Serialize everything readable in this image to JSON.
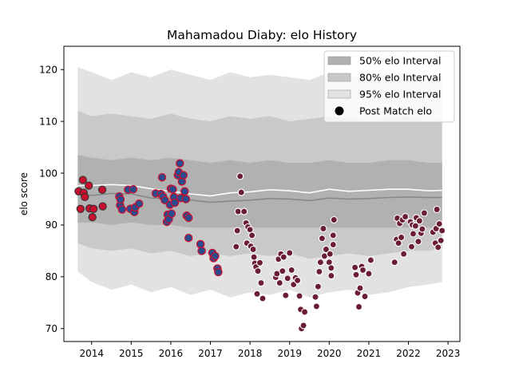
{
  "chart_data": {
    "type": "scatter",
    "title": "Mahamadou Diaby: elo History",
    "xlabel": "",
    "ylabel": "elo score",
    "xlim": [
      2013.3,
      2023.3
    ],
    "ylim": [
      67.5,
      124.5
    ],
    "x_ticks": [
      2014,
      2015,
      2016,
      2017,
      2018,
      2019,
      2020,
      2021,
      2022,
      2023
    ],
    "y_ticks": [
      70,
      80,
      90,
      100,
      110,
      120
    ],
    "grid": false,
    "legend_position": "top-right",
    "legend": [
      {
        "label": "50% elo Interval",
        "kind": "patch",
        "color": "#b0b0b0"
      },
      {
        "label": "80% elo Interval",
        "kind": "patch",
        "color": "#c8c8c8"
      },
      {
        "label": "95% elo Interval",
        "kind": "patch",
        "color": "#e2e2e2"
      },
      {
        "label": "Post Match elo",
        "kind": "marker",
        "color": "#000000"
      }
    ],
    "colors": {
      "band95": "#e2e2e2",
      "band80": "#c9c9c9",
      "band50": "#b1b1b1",
      "median_line": "#888888",
      "mean_line": "#ffffff",
      "era1_fill": "#c8102e",
      "era1_edge": "#333333",
      "era2_fill": "#2a4c8f",
      "era2_edge": "#c8102e",
      "era3_fill": "#6b1e33",
      "era3_edge": "#ffffff"
    },
    "bands": {
      "x": [
        2013.65,
        2014.0,
        2014.5,
        2015.0,
        2015.5,
        2016.0,
        2016.5,
        2017.0,
        2017.5,
        2018.0,
        2018.5,
        2019.0,
        2019.5,
        2020.0,
        2020.5,
        2021.0,
        2021.5,
        2022.0,
        2022.5,
        2022.85
      ],
      "upper95": [
        120.5,
        119.5,
        118.0,
        119.5,
        118.5,
        120.0,
        119.0,
        118.0,
        119.5,
        118.5,
        119.0,
        118.5,
        118.0,
        119.5,
        119.0,
        118.0,
        119.0,
        119.5,
        118.0,
        118.5
      ],
      "lower95": [
        81.0,
        79.0,
        77.5,
        78.5,
        77.0,
        78.0,
        76.5,
        77.5,
        76.0,
        77.0,
        76.5,
        77.5,
        76.0,
        77.0,
        77.5,
        76.5,
        77.0,
        78.0,
        78.5,
        79.0
      ],
      "upper80": [
        112.0,
        111.0,
        111.5,
        111.0,
        110.5,
        111.5,
        110.5,
        110.0,
        111.0,
        110.5,
        111.0,
        110.0,
        110.5,
        111.0,
        110.5,
        110.0,
        110.5,
        111.0,
        110.0,
        110.5
      ],
      "lower80": [
        86.5,
        85.5,
        85.0,
        85.5,
        84.5,
        85.0,
        84.0,
        84.5,
        84.0,
        84.5,
        84.0,
        84.5,
        83.5,
        84.0,
        84.5,
        84.0,
        84.5,
        85.0,
        85.0,
        85.5
      ],
      "upper50": [
        103.5,
        103.0,
        102.5,
        103.0,
        102.5,
        103.0,
        102.5,
        102.0,
        102.5,
        102.0,
        102.5,
        102.0,
        102.0,
        102.5,
        102.0,
        102.0,
        102.5,
        102.5,
        102.0,
        102.0
      ],
      "lower50": [
        90.5,
        90.5,
        90.0,
        90.5,
        90.0,
        90.0,
        89.5,
        89.5,
        89.5,
        89.5,
        89.5,
        89.5,
        89.5,
        89.5,
        89.5,
        89.5,
        89.5,
        89.5,
        89.5,
        89.5
      ],
      "median": [
        96.0,
        95.7,
        96.1,
        96.0,
        95.2,
        95.0,
        94.8,
        94.4,
        94.6,
        94.8,
        95.1,
        95.0,
        94.7,
        95.2,
        95.0,
        95.1,
        95.3,
        95.4,
        95.3,
        95.3
      ],
      "mean": [
        97.6,
        97.6,
        97.8,
        97.6,
        97.0,
        96.5,
        96.0,
        95.6,
        96.2,
        96.4,
        96.8,
        96.6,
        96.2,
        96.9,
        96.5,
        96.7,
        96.9,
        96.9,
        96.6,
        96.7
      ]
    },
    "series": [
      {
        "era": 1,
        "points": [
          [
            2013.67,
            96.5
          ],
          [
            2013.72,
            93.1
          ],
          [
            2013.78,
            98.7
          ],
          [
            2013.8,
            96.2
          ],
          [
            2013.83,
            95.4
          ],
          [
            2013.93,
            97.6
          ],
          [
            2013.95,
            93.2
          ],
          [
            2014.02,
            91.5
          ],
          [
            2014.05,
            93.1
          ],
          [
            2014.27,
            96.8
          ],
          [
            2014.28,
            93.6
          ]
        ]
      },
      {
        "era": 2,
        "points": [
          [
            2014.7,
            95.5
          ],
          [
            2014.72,
            93.8
          ],
          [
            2014.73,
            94.9
          ],
          [
            2014.77,
            93.0
          ],
          [
            2014.92,
            96.8
          ],
          [
            2014.98,
            93.1
          ],
          [
            2015.05,
            96.9
          ],
          [
            2015.08,
            92.5
          ],
          [
            2015.1,
            93.4
          ],
          [
            2015.2,
            94.1
          ],
          [
            2015.62,
            96.1
          ],
          [
            2015.75,
            96.0
          ],
          [
            2015.78,
            99.2
          ],
          [
            2015.8,
            95.5
          ],
          [
            2015.85,
            94.8
          ],
          [
            2015.9,
            90.6
          ],
          [
            2015.92,
            92.0
          ],
          [
            2015.95,
            91.1
          ],
          [
            2015.98,
            93.9
          ],
          [
            2016.0,
            97.0
          ],
          [
            2016.02,
            92.2
          ],
          [
            2016.05,
            96.9
          ],
          [
            2016.08,
            95.4
          ],
          [
            2016.1,
            94.3
          ],
          [
            2016.18,
            99.6
          ],
          [
            2016.2,
            100.2
          ],
          [
            2016.23,
            101.9
          ],
          [
            2016.25,
            95.2
          ],
          [
            2016.28,
            98.4
          ],
          [
            2016.32,
            99.6
          ],
          [
            2016.35,
            96.5
          ],
          [
            2016.38,
            95.0
          ],
          [
            2016.4,
            91.8
          ],
          [
            2016.45,
            91.4
          ],
          [
            2016.45,
            87.5
          ],
          [
            2016.75,
            86.3
          ],
          [
            2016.78,
            85.0
          ],
          [
            2017.05,
            84.6
          ],
          [
            2017.08,
            83.6
          ],
          [
            2017.12,
            84.0
          ],
          [
            2017.18,
            81.6
          ],
          [
            2017.2,
            80.9
          ]
        ]
      },
      {
        "era": 3,
        "points": [
          [
            2017.65,
            85.8
          ],
          [
            2017.68,
            88.9
          ],
          [
            2017.7,
            92.6
          ],
          [
            2017.75,
            99.4
          ],
          [
            2017.78,
            96.3
          ],
          [
            2017.85,
            92.6
          ],
          [
            2017.9,
            90.4
          ],
          [
            2017.92,
            86.5
          ],
          [
            2017.95,
            89.6
          ],
          [
            2018.0,
            89.1
          ],
          [
            2018.02,
            85.9
          ],
          [
            2018.05,
            88.0
          ],
          [
            2018.08,
            85.3
          ],
          [
            2018.1,
            83.8
          ],
          [
            2018.12,
            82.6
          ],
          [
            2018.15,
            81.9
          ],
          [
            2018.18,
            76.7
          ],
          [
            2018.2,
            81.1
          ],
          [
            2018.25,
            82.7
          ],
          [
            2018.28,
            78.8
          ],
          [
            2018.32,
            75.8
          ],
          [
            2018.65,
            79.9
          ],
          [
            2018.68,
            80.6
          ],
          [
            2018.72,
            83.4
          ],
          [
            2018.75,
            78.8
          ],
          [
            2018.78,
            84.4
          ],
          [
            2018.82,
            81.1
          ],
          [
            2018.85,
            83.8
          ],
          [
            2018.9,
            76.4
          ],
          [
            2018.95,
            79.7
          ],
          [
            2019.0,
            84.6
          ],
          [
            2019.05,
            81.3
          ],
          [
            2019.1,
            78.5
          ],
          [
            2019.15,
            79.8
          ],
          [
            2019.2,
            79.3
          ],
          [
            2019.25,
            76.3
          ],
          [
            2019.28,
            73.7
          ],
          [
            2019.3,
            70.0
          ],
          [
            2019.35,
            70.6
          ],
          [
            2019.38,
            73.2
          ],
          [
            2019.65,
            76.1
          ],
          [
            2019.68,
            74.3
          ],
          [
            2019.72,
            78.1
          ],
          [
            2019.75,
            81.0
          ],
          [
            2019.78,
            82.8
          ],
          [
            2019.82,
            87.4
          ],
          [
            2019.85,
            89.3
          ],
          [
            2019.88,
            84.0
          ],
          [
            2019.92,
            85.3
          ],
          [
            2020.0,
            82.8
          ],
          [
            2020.02,
            84.4
          ],
          [
            2020.05,
            81.7
          ],
          [
            2020.05,
            80.2
          ],
          [
            2020.1,
            86.2
          ],
          [
            2020.1,
            88.0
          ],
          [
            2020.12,
            91.0
          ],
          [
            2020.65,
            81.8
          ],
          [
            2020.68,
            80.4
          ],
          [
            2020.72,
            76.9
          ],
          [
            2020.75,
            74.2
          ],
          [
            2020.78,
            77.8
          ],
          [
            2020.82,
            82.0
          ],
          [
            2020.85,
            81.3
          ],
          [
            2020.9,
            76.2
          ],
          [
            2021.0,
            80.6
          ],
          [
            2021.05,
            83.2
          ],
          [
            2021.65,
            82.8
          ],
          [
            2021.7,
            87.2
          ],
          [
            2021.72,
            91.3
          ],
          [
            2021.75,
            86.5
          ],
          [
            2021.78,
            90.3
          ],
          [
            2021.82,
            87.6
          ],
          [
            2021.85,
            91.0
          ],
          [
            2021.88,
            84.4
          ],
          [
            2021.92,
            91.6
          ],
          [
            2022.05,
            90.6
          ],
          [
            2022.08,
            85.8
          ],
          [
            2022.1,
            90.0
          ],
          [
            2022.12,
            88.3
          ],
          [
            2022.18,
            89.8
          ],
          [
            2022.2,
            91.4
          ],
          [
            2022.25,
            86.8
          ],
          [
            2022.28,
            90.8
          ],
          [
            2022.32,
            88.4
          ],
          [
            2022.35,
            89.2
          ],
          [
            2022.4,
            92.3
          ],
          [
            2022.62,
            88.6
          ],
          [
            2022.68,
            86.5
          ],
          [
            2022.7,
            89.3
          ],
          [
            2022.72,
            93.0
          ],
          [
            2022.75,
            85.7
          ],
          [
            2022.78,
            90.2
          ],
          [
            2022.82,
            87.0
          ],
          [
            2022.85,
            88.9
          ]
        ]
      }
    ]
  }
}
